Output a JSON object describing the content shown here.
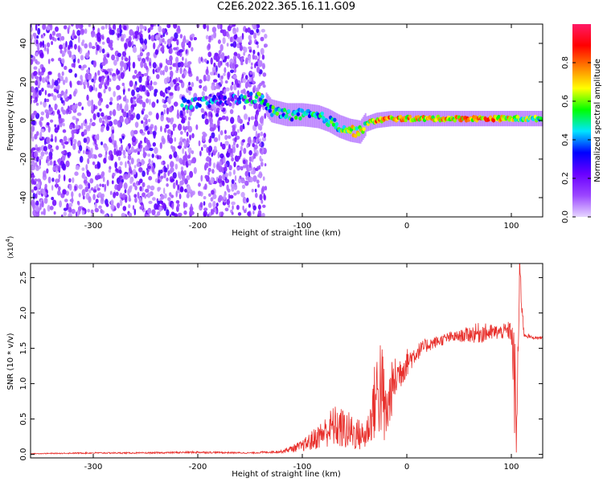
{
  "title": "C2E6.2022.365.16.11.G09",
  "chart_data": [
    {
      "type": "heatmap",
      "xlabel": "Height of straight line (km)",
      "ylabel": "Frequency (Hz)",
      "xlim": [
        -360,
        130
      ],
      "ylim": [
        -50,
        50
      ],
      "x_ticks": [
        -300,
        -200,
        -100,
        0,
        100
      ],
      "x_tick_labels": [
        "-300",
        "-200",
        "-100",
        "0",
        "100"
      ],
      "y_ticks": [
        -40,
        -20,
        0,
        20,
        40
      ],
      "y_tick_labels": [
        "-40",
        "-20",
        "0",
        "20",
        "40"
      ],
      "colorbar": {
        "label": "Normalized spectral amplitude",
        "range": [
          0,
          1
        ],
        "ticks": [
          0.0,
          0.2,
          0.4,
          0.6,
          0.8
        ],
        "tick_labels": [
          "0.0",
          "0.2",
          "0.4",
          "0.6",
          "0.8"
        ],
        "colors": [
          "#e6d6ff",
          "#9b46ff",
          "#6a00ff",
          "#0000ff",
          "#00e5ff",
          "#00ff00",
          "#ffff00",
          "#ff7f00",
          "#ff0000",
          "#ff1a66"
        ]
      },
      "noise_region": {
        "x_range": [
          -360,
          -135
        ],
        "freq_range": [
          -50,
          50
        ],
        "typical_amplitude": 0.15
      },
      "signal_trace": [
        {
          "x": -215,
          "f": 9,
          "amp": 0.4
        },
        {
          "x": -200,
          "f": 9,
          "amp": 0.35
        },
        {
          "x": -180,
          "f": 10,
          "amp": 0.3
        },
        {
          "x": -160,
          "f": 11,
          "amp": 0.3
        },
        {
          "x": -140,
          "f": 12,
          "amp": 0.45
        },
        {
          "x": -130,
          "f": 5,
          "amp": 0.45
        },
        {
          "x": -115,
          "f": 3,
          "amp": 0.45
        },
        {
          "x": -100,
          "f": 3,
          "amp": 0.5
        },
        {
          "x": -85,
          "f": 2,
          "amp": 0.45
        },
        {
          "x": -75,
          "f": 0,
          "amp": 0.5
        },
        {
          "x": -65,
          "f": -3,
          "amp": 0.55
        },
        {
          "x": -55,
          "f": -5,
          "amp": 0.6
        },
        {
          "x": -45,
          "f": -6,
          "amp": 0.6
        },
        {
          "x": -40,
          "f": -2,
          "amp": 0.55
        },
        {
          "x": -30,
          "f": 0,
          "amp": 0.7
        },
        {
          "x": -15,
          "f": 1,
          "amp": 0.75
        },
        {
          "x": 0,
          "f": 1,
          "amp": 0.7
        },
        {
          "x": 20,
          "f": 1,
          "amp": 0.65
        },
        {
          "x": 40,
          "f": 1,
          "amp": 0.7
        },
        {
          "x": 60,
          "f": 1,
          "amp": 0.7
        },
        {
          "x": 80,
          "f": 1,
          "amp": 0.75
        },
        {
          "x": 100,
          "f": 1,
          "amp": 0.6
        },
        {
          "x": 115,
          "f": 1,
          "amp": 0.55
        },
        {
          "x": 130,
          "f": 1,
          "amp": 0.5
        }
      ],
      "grid": false
    },
    {
      "type": "line",
      "xlabel": "Height of straight line (km)",
      "ylabel": "SNR (10 * v/v)",
      "y_multiplier": "(x10",
      "y_multiplier_exp": "4",
      "y_multiplier_close": ")",
      "xlim": [
        -360,
        130
      ],
      "ylim": [
        -0.05,
        2.7
      ],
      "x_ticks": [
        -300,
        -200,
        -100,
        0,
        100
      ],
      "x_tick_labels": [
        "-300",
        "-200",
        "-100",
        "0",
        "100"
      ],
      "y_ticks": [
        0.0,
        0.5,
        1.0,
        1.5,
        2.0,
        2.5
      ],
      "y_tick_labels": [
        "0.0",
        "0.5",
        "1.0",
        "1.5",
        "2.0",
        "2.5"
      ],
      "line_color": "#e8302c",
      "series": [
        {
          "x": [
            -360,
            -300,
            -250,
            -200,
            -150,
            -120,
            -110,
            -100,
            -90,
            -80,
            -70,
            -60,
            -50,
            -40,
            -35,
            -30,
            -25,
            -20,
            -15,
            -10,
            -5,
            0,
            10,
            20,
            30,
            40,
            50,
            60,
            70,
            80,
            90,
            100,
            103,
            105,
            108,
            112,
            120,
            130
          ],
          "y": [
            0.01,
            0.02,
            0.02,
            0.03,
            0.02,
            0.04,
            0.08,
            0.12,
            0.2,
            0.3,
            0.4,
            0.35,
            0.3,
            0.25,
            0.45,
            0.8,
            1.0,
            0.5,
            0.9,
            1.1,
            1.2,
            1.3,
            1.45,
            1.55,
            1.6,
            1.65,
            1.67,
            1.7,
            1.72,
            1.72,
            1.73,
            1.75,
            1.0,
            0.3,
            2.6,
            1.7,
            1.65,
            1.65
          ],
          "noise_amplitude": [
            0.005,
            0.01,
            0.01,
            0.015,
            0.01,
            0.02,
            0.05,
            0.08,
            0.15,
            0.2,
            0.3,
            0.3,
            0.25,
            0.2,
            0.3,
            0.6,
            0.8,
            0.5,
            0.4,
            0.3,
            0.25,
            0.2,
            0.12,
            0.1,
            0.08,
            0.08,
            0.08,
            0.12,
            0.15,
            0.12,
            0.1,
            0.15,
            0.8,
            0.6,
            0.3,
            0.05,
            0.02,
            0.02
          ]
        }
      ],
      "grid": false
    }
  ]
}
